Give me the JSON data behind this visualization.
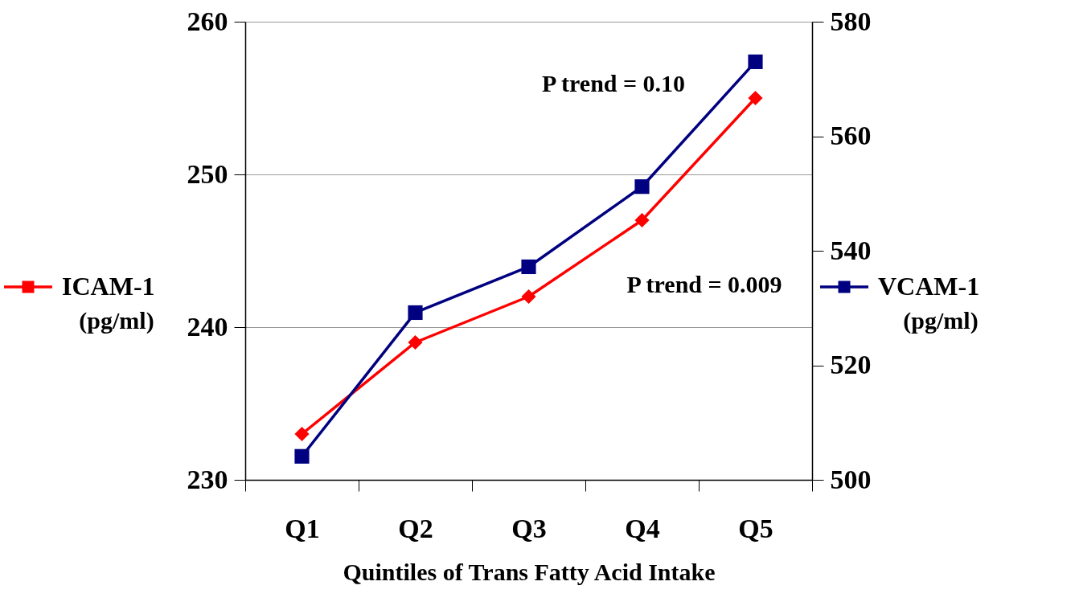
{
  "chart_data": {
    "type": "line",
    "xlabel": "Quintiles of Trans Fatty Acid Intake",
    "ylabel": "(pg/ml)",
    "y2label": "(pg/ml)",
    "categories": [
      "Q1",
      "Q2",
      "Q3",
      "Q4",
      "Q5"
    ],
    "series": [
      {
        "name": "ICAM-1",
        "color": "#ff0000",
        "marker": "diamond",
        "values": [
          233.0,
          239.0,
          242.0,
          247.0,
          255.0
        ]
      },
      {
        "name": "VCAM-1",
        "color": "#000080",
        "marker": "square",
        "axis": "y2",
        "values": [
          504.1,
          529.2,
          537.2,
          551.2,
          573.0
        ]
      }
    ],
    "ylim": [
      230,
      260
    ],
    "yticks": [
      230,
      240,
      250,
      260
    ],
    "y2lim": [
      500,
      580
    ],
    "y2ticks": [
      500,
      520,
      540,
      560,
      580
    ],
    "grid": "y",
    "legend": "left",
    "annotations": [
      "P trend = 0.10",
      "P trend = 0.009"
    ]
  }
}
